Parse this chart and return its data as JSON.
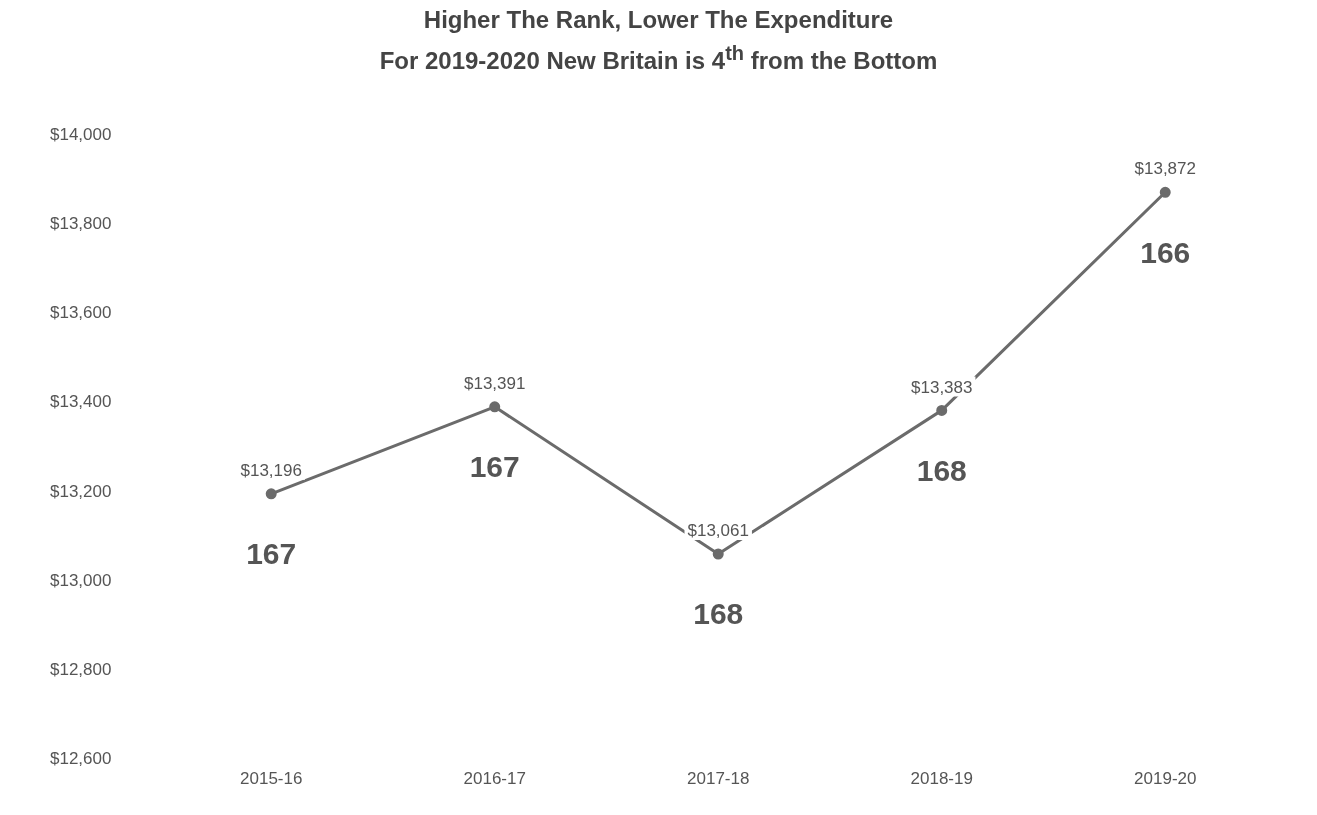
{
  "chart_data": {
    "type": "line",
    "title": "Higher The Rank, Lower The Expenditure",
    "subtitle": "For 2019-2020 New Britain is 4$^{th}$ from the Bottom",
    "categories": [
      "2015-16",
      "2016-17",
      "2017-18",
      "2018-19",
      "2019-20"
    ],
    "values": [
      13196,
      13391,
      13061,
      13383,
      13872
    ],
    "value_labels": [
      "$13,196",
      "$13,391",
      "$13,061",
      "$13,383",
      "$13,872"
    ],
    "color": "#6b6b6b",
    "marker": "circle",
    "line_style": "solid",
    "grid": false,
    "legend": false,
    "ylim": [
      12600,
      14000
    ],
    "yticks": [
      {
        "value": 12600,
        "label": "$12,600"
      },
      {
        "value": 12800,
        "label": "$12,800"
      },
      {
        "value": 13000,
        "label": "$13,000"
      },
      {
        "value": 13200,
        "label": "$13,200"
      },
      {
        "value": 13400,
        "label": "$13,400"
      },
      {
        "value": 13600,
        "label": "$13,600"
      },
      {
        "value": 13800,
        "label": "$13,800"
      },
      {
        "value": 14000,
        "label": "$14,000"
      }
    ],
    "annotations": [
      {
        "text": "167",
        "x": "2015-16",
        "y": 13196
      },
      {
        "text": "167",
        "x": "2016-17",
        "y": 13391
      },
      {
        "text": "168",
        "x": "2017-18",
        "y": 13061
      },
      {
        "text": "168",
        "x": "2018-19",
        "y": 13383
      },
      {
        "text": "166",
        "x": "2019-20",
        "y": 13872
      }
    ]
  }
}
